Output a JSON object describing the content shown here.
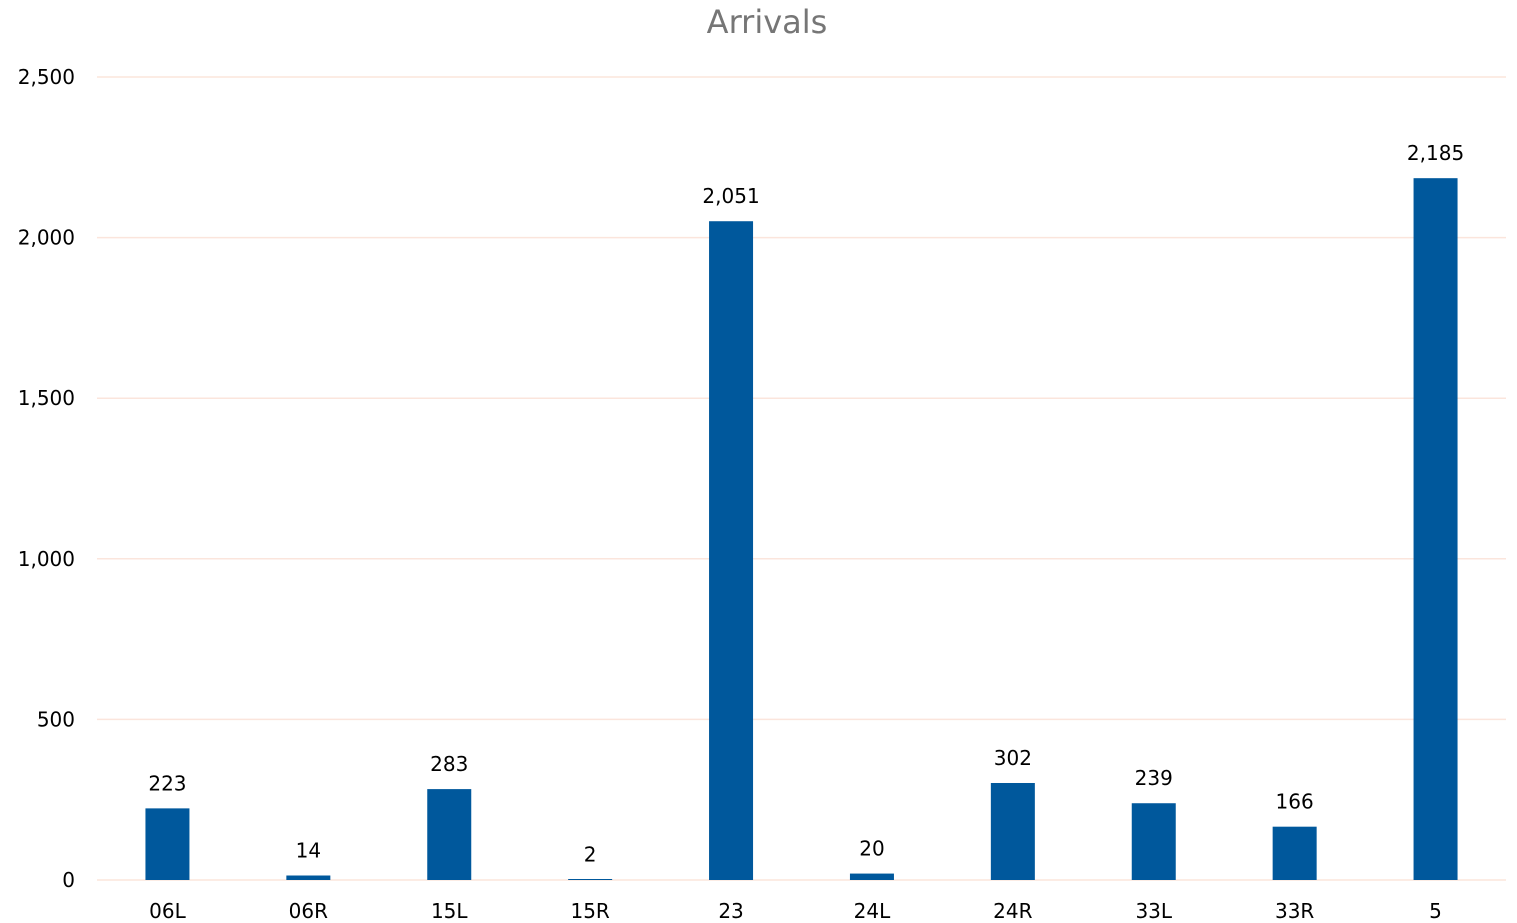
{
  "chart_data": {
    "type": "bar",
    "title": "Arrivals",
    "xlabel": "",
    "ylabel": "",
    "categories": [
      "06L",
      "06R",
      "15L",
      "15R",
      "23",
      "24L",
      "24R",
      "33L",
      "33R",
      "5"
    ],
    "values": [
      223,
      14,
      283,
      2,
      2051,
      20,
      302,
      239,
      166,
      2185
    ],
    "data_labels": [
      "223",
      "14",
      "283",
      "2",
      "2,051",
      "20",
      "302",
      "239",
      "166",
      "2,185"
    ],
    "ylim": [
      0,
      2500
    ],
    "yticks": [
      0,
      500,
      1000,
      1500,
      2000,
      2500
    ],
    "ytick_labels": [
      "0",
      "500",
      "1,000",
      "1,500",
      "2,000",
      "2,500"
    ],
    "grid": true,
    "legend": "none",
    "colors": {
      "bar": "#00589c",
      "grid": "#fbe5dc",
      "title": "#767676",
      "text": "#000000"
    }
  }
}
